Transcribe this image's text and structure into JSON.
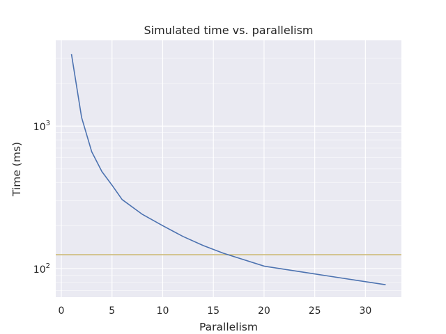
{
  "chart_data": {
    "type": "line",
    "title": "Simulated time vs. parallelism",
    "xlabel": "Parallelism",
    "ylabel": "Time (ms)",
    "xlim": [
      -0.55,
      33.55
    ],
    "ylim": [
      63,
      4000
    ],
    "y_scale": "log",
    "grid": true,
    "x_ticks": [
      0,
      5,
      10,
      15,
      20,
      25,
      30
    ],
    "y_ticks": [
      {
        "value": 100,
        "base": "10",
        "exp": "2"
      },
      {
        "value": 1000,
        "base": "10",
        "exp": "3"
      }
    ],
    "series": [
      {
        "x": [
          1,
          2,
          3,
          4,
          5,
          6,
          8,
          10,
          12,
          14,
          16,
          20,
          24,
          28,
          32
        ],
        "y": [
          3200,
          1150,
          660,
          480,
          385,
          305,
          240,
          200,
          168,
          145,
          128,
          104,
          94,
          85,
          77
        ],
        "color": "#4c72b0"
      }
    ],
    "reference_line": {
      "y": 125,
      "color": "#ccb974"
    },
    "colors": {
      "background": "#eaeaf2",
      "grid": "#ffffff",
      "text": "#262626"
    }
  }
}
